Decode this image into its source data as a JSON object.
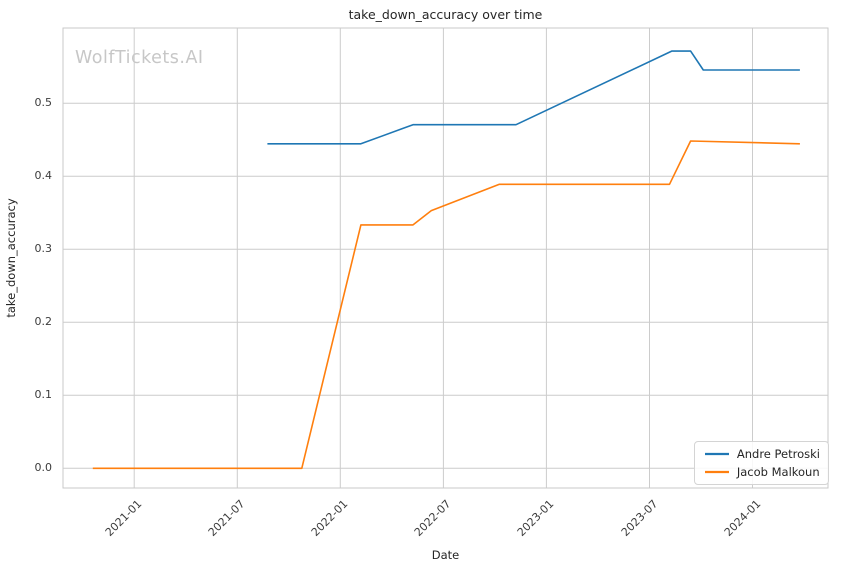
{
  "watermark": "WolfTickets.AI",
  "chart_data": {
    "type": "line",
    "title": "take_down_accuracy over time",
    "xlabel": "Date",
    "ylabel": "take_down_accuracy",
    "grid": true,
    "legend_position": "lower right",
    "x_ticks": [
      "2021-01",
      "2021-07",
      "2022-01",
      "2022-07",
      "2023-01",
      "2023-07",
      "2024-01"
    ],
    "y_ticks": [
      0.0,
      0.1,
      0.2,
      0.3,
      0.4,
      0.5
    ],
    "xlim": [
      "2020-08-27",
      "2024-05-13"
    ],
    "ylim": [
      -0.027,
      0.603
    ],
    "colors": {
      "grid": "#cccccc",
      "spine": "#c9c9c9"
    },
    "series": [
      {
        "name": "Andre Petroski",
        "color": "#1f77b4",
        "points": [
          [
            "2021-08-24",
            0.4444
          ],
          [
            "2022-02-07",
            0.4444
          ],
          [
            "2022-05-08",
            0.4706
          ],
          [
            "2022-11-08",
            0.4706
          ],
          [
            "2023-08-10",
            0.5714
          ],
          [
            "2023-09-13",
            0.5714
          ],
          [
            "2023-10-05",
            0.5455
          ],
          [
            "2024-03-24",
            0.5455
          ]
        ]
      },
      {
        "name": "Jacob Malkoun",
        "color": "#ff7f0e",
        "points": [
          [
            "2020-10-19",
            0.0
          ],
          [
            "2021-10-24",
            0.0
          ],
          [
            "2022-02-07",
            0.3333
          ],
          [
            "2022-05-08",
            0.3333
          ],
          [
            "2022-06-10",
            0.3529
          ],
          [
            "2022-10-09",
            0.3889
          ],
          [
            "2023-08-06",
            0.3889
          ],
          [
            "2023-09-13",
            0.4483
          ],
          [
            "2024-03-24",
            0.4444
          ]
        ]
      }
    ]
  }
}
